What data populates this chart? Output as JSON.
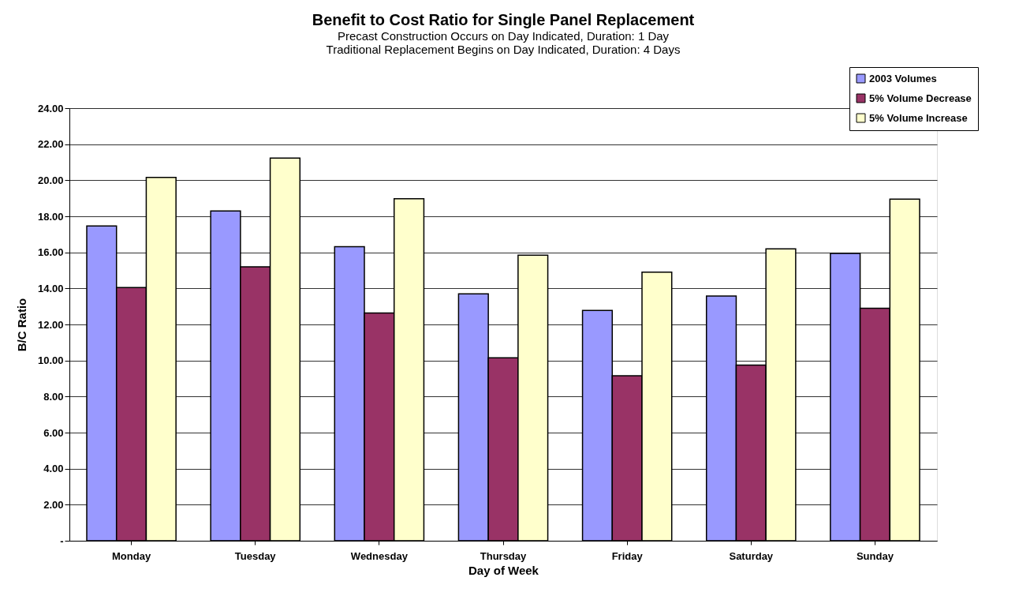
{
  "chart_data": {
    "type": "bar",
    "title": "Benefit to Cost Ratio for Single Panel Replacement",
    "subtitle": [
      "Precast Construction Occurs on Day Indicated, Duration: 1 Day",
      "Traditional Replacement Begins on Day Indicated, Duration: 4 Days"
    ],
    "xlabel": "Day of Week",
    "ylabel": "B/C Ratio",
    "categories": [
      "Monday",
      "Tuesday",
      "Wednesday",
      "Thursday",
      "Friday",
      "Saturday",
      "Sunday"
    ],
    "series": [
      {
        "name": "2003 Volumes",
        "color": "#9999ff",
        "values": [
          17.46,
          18.3,
          16.31,
          13.7,
          12.78,
          13.58,
          15.94
        ]
      },
      {
        "name": "5% Volume Decrease",
        "color": "#993366",
        "values": [
          14.05,
          15.2,
          12.63,
          10.15,
          9.15,
          9.75,
          12.9
        ]
      },
      {
        "name": "5% Volume Increase",
        "color": "#ffffcc",
        "values": [
          20.16,
          21.23,
          18.97,
          15.84,
          14.9,
          16.19,
          18.95
        ]
      }
    ],
    "ylim": [
      0,
      24
    ],
    "yticks": [
      {
        "value": 0,
        "label": "-"
      },
      {
        "value": 2,
        "label": "2.00"
      },
      {
        "value": 4,
        "label": "4.00"
      },
      {
        "value": 6,
        "label": "6.00"
      },
      {
        "value": 8,
        "label": "8.00"
      },
      {
        "value": 10,
        "label": "10.00"
      },
      {
        "value": 12,
        "label": "12.00"
      },
      {
        "value": 14,
        "label": "14.00"
      },
      {
        "value": 16,
        "label": "16.00"
      },
      {
        "value": 18,
        "label": "18.00"
      },
      {
        "value": 20,
        "label": "20.00"
      },
      {
        "value": 22,
        "label": "22.00"
      },
      {
        "value": 24,
        "label": "24.00"
      }
    ],
    "grid": "y",
    "legend": "top right"
  }
}
